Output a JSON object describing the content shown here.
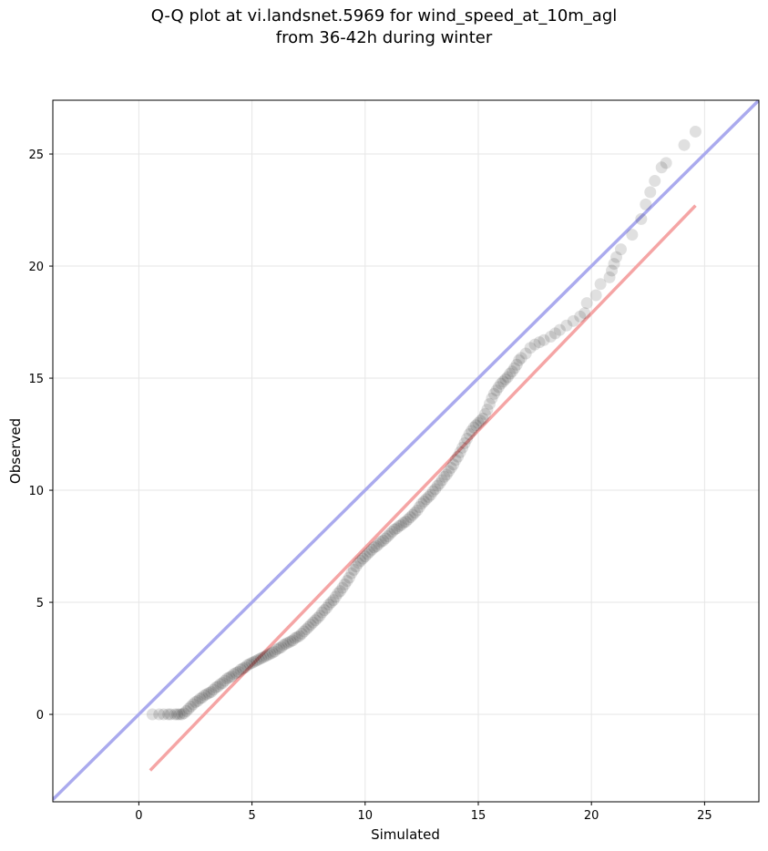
{
  "chart_data": {
    "type": "scatter",
    "title": "Q-Q plot at vi.landsnet.5969 for wind_speed_at_10m_agl",
    "subtitle": "from 36-42h during winter",
    "xlabel": "Simulated",
    "ylabel": "Observed",
    "xlim": [
      -3.8,
      27.4
    ],
    "ylim": [
      -3.9,
      27.4
    ],
    "xticks": [
      0,
      5,
      10,
      15,
      20,
      25
    ],
    "yticks": [
      0,
      5,
      10,
      15,
      20,
      25
    ],
    "grid": true,
    "reference_lines": [
      {
        "kind": "identity",
        "color": "#aaaaee",
        "x": [
          -3.8,
          27.4
        ],
        "y": [
          -3.8,
          27.4
        ]
      },
      {
        "kind": "fit",
        "color": "#f5a5a5",
        "x": [
          0.5,
          24.6
        ],
        "y": [
          -2.5,
          22.7
        ]
      }
    ],
    "point_color": "#000000",
    "points": [
      [
        0.6,
        0.0
      ],
      [
        0.9,
        0.0
      ],
      [
        1.1,
        0.0
      ],
      [
        1.3,
        0.0
      ],
      [
        1.4,
        0.0
      ],
      [
        1.6,
        0.0
      ],
      [
        1.7,
        0.0
      ],
      [
        1.8,
        0.0
      ],
      [
        1.9,
        0.0
      ],
      [
        2.0,
        0.05
      ],
      [
        2.1,
        0.15
      ],
      [
        2.2,
        0.25
      ],
      [
        2.3,
        0.35
      ],
      [
        2.4,
        0.45
      ],
      [
        2.5,
        0.55
      ],
      [
        2.6,
        0.6
      ],
      [
        2.7,
        0.7
      ],
      [
        2.8,
        0.75
      ],
      [
        2.9,
        0.85
      ],
      [
        3.0,
        0.9
      ],
      [
        3.1,
        0.95
      ],
      [
        3.2,
        1.0
      ],
      [
        3.3,
        1.1
      ],
      [
        3.4,
        1.2
      ],
      [
        3.5,
        1.25
      ],
      [
        3.6,
        1.35
      ],
      [
        3.7,
        1.4
      ],
      [
        3.8,
        1.5
      ],
      [
        3.9,
        1.6
      ],
      [
        4.0,
        1.65
      ],
      [
        4.1,
        1.7
      ],
      [
        4.2,
        1.8
      ],
      [
        4.3,
        1.85
      ],
      [
        4.4,
        1.9
      ],
      [
        4.5,
        2.0
      ],
      [
        4.6,
        2.05
      ],
      [
        4.7,
        2.1
      ],
      [
        4.8,
        2.2
      ],
      [
        4.9,
        2.25
      ],
      [
        5.0,
        2.3
      ],
      [
        5.1,
        2.35
      ],
      [
        5.2,
        2.4
      ],
      [
        5.3,
        2.45
      ],
      [
        5.4,
        2.5
      ],
      [
        5.5,
        2.55
      ],
      [
        5.6,
        2.6
      ],
      [
        5.7,
        2.65
      ],
      [
        5.8,
        2.7
      ],
      [
        5.9,
        2.75
      ],
      [
        6.0,
        2.8
      ],
      [
        6.1,
        2.9
      ],
      [
        6.2,
        2.95
      ],
      [
        6.3,
        3.0
      ],
      [
        6.4,
        3.1
      ],
      [
        6.5,
        3.15
      ],
      [
        6.6,
        3.2
      ],
      [
        6.7,
        3.25
      ],
      [
        6.8,
        3.3
      ],
      [
        6.9,
        3.4
      ],
      [
        7.0,
        3.45
      ],
      [
        7.1,
        3.5
      ],
      [
        7.2,
        3.6
      ],
      [
        7.3,
        3.7
      ],
      [
        7.4,
        3.8
      ],
      [
        7.5,
        3.9
      ],
      [
        7.6,
        4.0
      ],
      [
        7.7,
        4.1
      ],
      [
        7.8,
        4.2
      ],
      [
        7.9,
        4.3
      ],
      [
        8.0,
        4.4
      ],
      [
        8.1,
        4.55
      ],
      [
        8.2,
        4.65
      ],
      [
        8.3,
        4.75
      ],
      [
        8.4,
        4.9
      ],
      [
        8.5,
        5.0
      ],
      [
        8.6,
        5.1
      ],
      [
        8.7,
        5.25
      ],
      [
        8.8,
        5.4
      ],
      [
        8.9,
        5.5
      ],
      [
        9.0,
        5.65
      ],
      [
        9.1,
        5.8
      ],
      [
        9.2,
        5.95
      ],
      [
        9.3,
        6.1
      ],
      [
        9.4,
        6.3
      ],
      [
        9.5,
        6.45
      ],
      [
        9.6,
        6.6
      ],
      [
        9.7,
        6.75
      ],
      [
        9.8,
        6.85
      ],
      [
        9.9,
        6.95
      ],
      [
        10.0,
        7.05
      ],
      [
        10.1,
        7.15
      ],
      [
        10.2,
        7.25
      ],
      [
        10.3,
        7.35
      ],
      [
        10.4,
        7.45
      ],
      [
        10.5,
        7.5
      ],
      [
        10.6,
        7.6
      ],
      [
        10.7,
        7.7
      ],
      [
        10.8,
        7.75
      ],
      [
        10.9,
        7.85
      ],
      [
        11.0,
        7.95
      ],
      [
        11.1,
        8.05
      ],
      [
        11.2,
        8.15
      ],
      [
        11.3,
        8.25
      ],
      [
        11.4,
        8.3
      ],
      [
        11.5,
        8.4
      ],
      [
        11.6,
        8.45
      ],
      [
        11.7,
        8.55
      ],
      [
        11.8,
        8.6
      ],
      [
        11.9,
        8.7
      ],
      [
        12.0,
        8.8
      ],
      [
        12.1,
        8.9
      ],
      [
        12.2,
        9.0
      ],
      [
        12.3,
        9.1
      ],
      [
        12.4,
        9.25
      ],
      [
        12.5,
        9.4
      ],
      [
        12.6,
        9.5
      ],
      [
        12.7,
        9.6
      ],
      [
        12.8,
        9.7
      ],
      [
        12.9,
        9.8
      ],
      [
        13.0,
        9.95
      ],
      [
        13.1,
        10.05
      ],
      [
        13.2,
        10.2
      ],
      [
        13.3,
        10.3
      ],
      [
        13.4,
        10.45
      ],
      [
        13.5,
        10.6
      ],
      [
        13.6,
        10.7
      ],
      [
        13.7,
        10.85
      ],
      [
        13.8,
        11.0
      ],
      [
        13.9,
        11.15
      ],
      [
        14.0,
        11.35
      ],
      [
        14.1,
        11.5
      ],
      [
        14.2,
        11.7
      ],
      [
        14.3,
        11.9
      ],
      [
        14.4,
        12.1
      ],
      [
        14.5,
        12.3
      ],
      [
        14.6,
        12.5
      ],
      [
        14.7,
        12.65
      ],
      [
        14.8,
        12.8
      ],
      [
        14.9,
        12.9
      ],
      [
        15.0,
        13.0
      ],
      [
        15.1,
        13.1
      ],
      [
        15.2,
        13.2
      ],
      [
        15.3,
        13.4
      ],
      [
        15.4,
        13.6
      ],
      [
        15.5,
        13.85
      ],
      [
        15.6,
        14.1
      ],
      [
        15.7,
        14.3
      ],
      [
        15.8,
        14.45
      ],
      [
        15.9,
        14.6
      ],
      [
        16.0,
        14.75
      ],
      [
        16.1,
        14.85
      ],
      [
        16.2,
        14.95
      ],
      [
        16.3,
        15.05
      ],
      [
        16.4,
        15.2
      ],
      [
        16.5,
        15.3
      ],
      [
        16.6,
        15.45
      ],
      [
        16.7,
        15.6
      ],
      [
        16.8,
        15.8
      ],
      [
        16.9,
        15.9
      ],
      [
        17.1,
        16.1
      ],
      [
        17.3,
        16.35
      ],
      [
        17.5,
        16.5
      ],
      [
        17.7,
        16.6
      ],
      [
        17.9,
        16.7
      ],
      [
        18.2,
        16.85
      ],
      [
        18.4,
        17.0
      ],
      [
        18.6,
        17.15
      ],
      [
        18.9,
        17.35
      ],
      [
        19.2,
        17.55
      ],
      [
        19.5,
        17.75
      ],
      [
        19.7,
        17.9
      ],
      [
        19.8,
        18.35
      ],
      [
        20.2,
        18.7
      ],
      [
        20.4,
        19.2
      ],
      [
        20.8,
        19.5
      ],
      [
        20.9,
        19.8
      ],
      [
        21.0,
        20.1
      ],
      [
        21.1,
        20.4
      ],
      [
        21.3,
        20.75
      ],
      [
        21.8,
        21.4
      ],
      [
        22.2,
        22.1
      ],
      [
        22.4,
        22.75
      ],
      [
        22.6,
        23.3
      ],
      [
        22.8,
        23.8
      ],
      [
        23.1,
        24.4
      ],
      [
        23.3,
        24.6
      ],
      [
        24.1,
        25.4
      ],
      [
        24.6,
        26.0
      ]
    ]
  }
}
